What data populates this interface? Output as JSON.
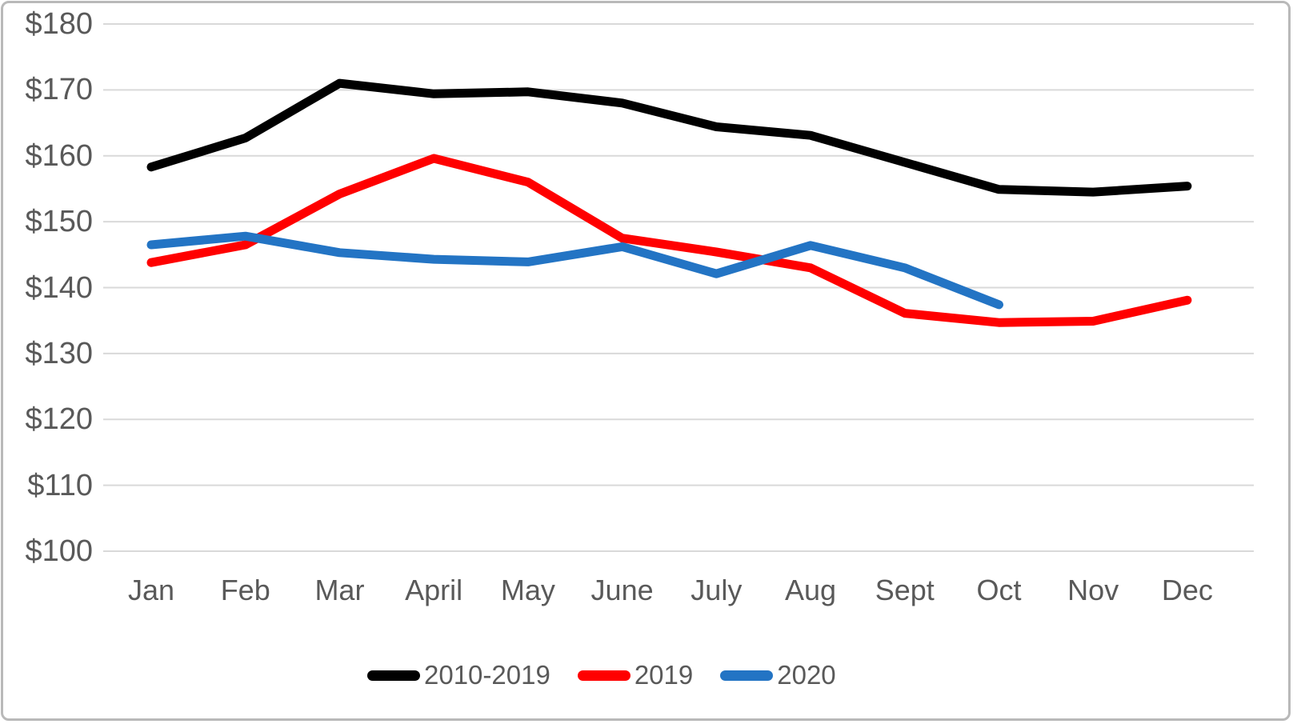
{
  "figure": {
    "background_color": "#ffffff",
    "border_color": "#b9b9b9",
    "text_color": "#595959",
    "gridline_color": "#d9d9d9"
  },
  "chart_data": {
    "type": "line",
    "title": "",
    "xlabel": "",
    "ylabel": "",
    "ylim": [
      100,
      180
    ],
    "y_tick_step": 10,
    "y_tick_labels": [
      "$180",
      "$170",
      "$160",
      "$150",
      "$140",
      "$130",
      "$120",
      "$110",
      "$100"
    ],
    "categories": [
      "Jan",
      "Feb",
      "Mar",
      "April",
      "May",
      "June",
      "July",
      "Aug",
      "Sept",
      "Oct",
      "Nov",
      "Dec"
    ],
    "grid": "horizontal",
    "legend_position": "bottom",
    "series": [
      {
        "name": "2010-2019",
        "color": "#000000",
        "values": [
          158.3,
          162.7,
          171.0,
          169.4,
          169.7,
          168.0,
          164.4,
          163.1,
          159.0,
          154.9,
          154.5,
          155.4
        ]
      },
      {
        "name": "2019",
        "color": "#FF0000",
        "values": [
          143.8,
          146.5,
          154.2,
          159.6,
          156.0,
          147.5,
          145.4,
          143.0,
          136.1,
          134.7,
          134.9,
          138.1
        ]
      },
      {
        "name": "2020",
        "color": "#2374C4",
        "values": [
          146.5,
          147.8,
          145.3,
          144.3,
          143.9,
          146.2,
          142.1,
          146.4,
          143.0,
          137.4,
          null,
          null
        ]
      }
    ]
  }
}
